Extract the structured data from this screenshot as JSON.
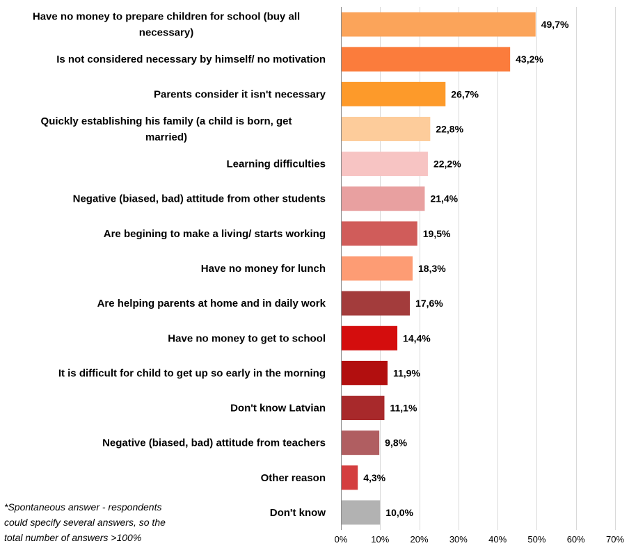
{
  "chart_data": {
    "type": "bar",
    "orientation": "horizontal",
    "categories": [
      [
        "Have no money to prepare children for school (buy all",
        "necessary)"
      ],
      [
        "Is not considered necessary by himself/ no motivation"
      ],
      [
        "Parents consider it isn't necessary"
      ],
      [
        "Quickly establishing his family (a child is born, get",
        "married)"
      ],
      [
        "Learning difficulties"
      ],
      [
        "Negative (biased, bad) attitude from other students"
      ],
      [
        "Are begining to make a living/ starts working"
      ],
      [
        "Have no money for lunch"
      ],
      [
        "Are helping parents at home and in daily work"
      ],
      [
        "Have no money to get to school"
      ],
      [
        "It is difficult for child to get up so early in the morning"
      ],
      [
        "Don't know Latvian"
      ],
      [
        "Negative (biased, bad) attitude from teachers"
      ],
      [
        "Other reason"
      ],
      [
        "Don't know"
      ]
    ],
    "values": [
      49.7,
      43.2,
      26.7,
      22.8,
      22.2,
      21.4,
      19.5,
      18.3,
      17.6,
      14.4,
      11.9,
      11.1,
      9.8,
      4.3,
      10.0
    ],
    "value_labels": [
      "49,7%",
      "43,2%",
      "26,7%",
      "22,8%",
      "22,2%",
      "21,4%",
      "19,5%",
      "18,3%",
      "17,6%",
      "14,4%",
      "11,9%",
      "11,1%",
      "9,8%",
      "4,3%",
      "10,0%"
    ],
    "colors": [
      "#fba45a",
      "#fb7c3c",
      "#fd9a2a",
      "#fdcc9b",
      "#f7c4c3",
      "#e8a0a0",
      "#d05c5a",
      "#fd9c74",
      "#a33c3c",
      "#d40d0d",
      "#b20f0f",
      "#a8292b",
      "#b05e61",
      "#d43e3f",
      "#b2b2b2"
    ],
    "xlim": [
      0,
      70
    ],
    "ticks": [
      0,
      10,
      20,
      30,
      40,
      50,
      60,
      70
    ],
    "tick_labels": [
      "0%",
      "10%",
      "20%",
      "30%",
      "40%",
      "50%",
      "60%",
      "70%"
    ],
    "grid": true,
    "title": "",
    "xlabel": "",
    "ylabel": ""
  },
  "footnote": [
    "*Spontaneous answer - respondents",
    "could specify several answers, so the",
    "total number of answers >100%"
  ]
}
